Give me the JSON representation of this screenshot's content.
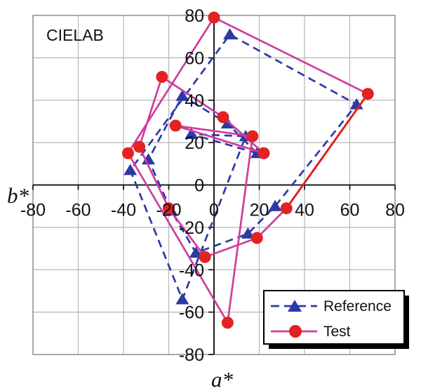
{
  "chart": {
    "title": "CIELAB",
    "xlabel": "a*",
    "ylabel": "b*"
  },
  "legend": {
    "reference_label": "Reference",
    "test_label": "Test"
  },
  "colors": {
    "reference_blue": "#2b3aa5",
    "test_magenta": "#cf3da0",
    "test_marker_red": "#e32222",
    "test_red_segment": "#e01f1f",
    "grid": "#b6b6b6",
    "box_border": "#8a8a8a",
    "axis": "#1c1c1c",
    "text": "#111111",
    "legend_shadow": "#000000",
    "legend_bg": "#ffffff"
  },
  "chart_data": {
    "type": "line",
    "title": "CIELAB",
    "xlabel": "a*",
    "ylabel": "b*",
    "xlim": [
      -80,
      80
    ],
    "ylim": [
      -80,
      80
    ],
    "x_ticks": [
      -80,
      -60,
      -40,
      -20,
      0,
      20,
      40,
      60,
      80
    ],
    "y_ticks": [
      -80,
      -60,
      -40,
      -20,
      0,
      20,
      40,
      60,
      80
    ],
    "grid": true,
    "legend_position": "bottom-right",
    "series": [
      {
        "name": "Reference",
        "marker": "triangle",
        "line_style": "dashed",
        "color": "#2b3aa5",
        "closed": true,
        "points": [
          [
            19,
            15
          ],
          [
            6,
            29
          ],
          [
            -14,
            42
          ],
          [
            -29,
            12
          ],
          [
            -19,
            -12
          ],
          [
            -8,
            -32
          ],
          [
            15,
            -23
          ],
          [
            27,
            -10
          ],
          [
            63,
            38
          ],
          [
            7,
            71
          ],
          [
            -37,
            7
          ],
          [
            -14,
            -54
          ],
          [
            14,
            23
          ],
          [
            -10,
            24
          ]
        ]
      },
      {
        "name": "Test",
        "marker": "circle",
        "line_style": "solid",
        "color": "#cf3da0",
        "marker_color": "#e32222",
        "closed": true,
        "points": [
          [
            22,
            15
          ],
          [
            4,
            32
          ],
          [
            -23,
            51
          ],
          [
            -33,
            18
          ],
          [
            -20,
            -11
          ],
          [
            -4,
            -34
          ],
          [
            19,
            -25
          ],
          [
            32,
            -11
          ],
          [
            68,
            43
          ],
          [
            0,
            79
          ],
          [
            -38,
            15
          ],
          [
            6,
            -65
          ],
          [
            17,
            23
          ],
          [
            -17,
            28
          ]
        ],
        "segment_color_overrides": [
          {
            "from_index": 7,
            "to_index": 8,
            "color": "#e01f1f"
          }
        ]
      }
    ]
  }
}
